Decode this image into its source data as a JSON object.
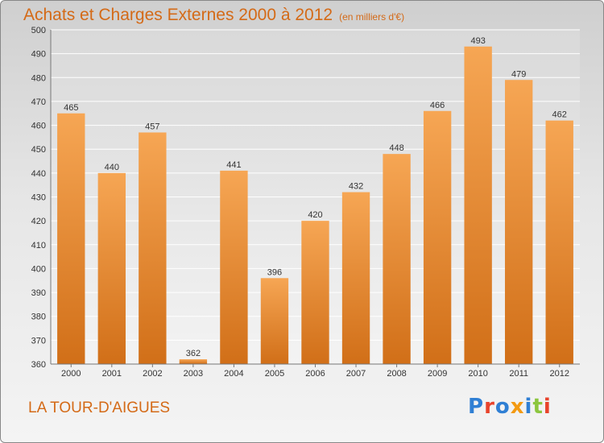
{
  "header": {
    "title": "Achats et Charges Externes 2000 à 2012",
    "unit": "(en milliers d'€)"
  },
  "footer": {
    "commune": "LA TOUR-D'AIGUES",
    "logo_text": "Proxiti",
    "logo_colors": [
      "#2f7fd4",
      "#e8432b",
      "#2f7fd4",
      "#f39a12",
      "#2f7fd4",
      "#8cc63f",
      "#e8432b"
    ]
  },
  "colors": {
    "bar_top": "#f6a654",
    "bar_bottom": "#d16f18",
    "text": "#d46a17"
  },
  "chart_data": {
    "type": "bar",
    "title": "Achats et Charges Externes 2000 à 2012",
    "subtitle": "(en milliers d'€)",
    "xlabel": "",
    "ylabel": "",
    "categories": [
      "2000",
      "2001",
      "2002",
      "2003",
      "2004",
      "2005",
      "2006",
      "2007",
      "2008",
      "2009",
      "2010",
      "2011",
      "2012"
    ],
    "values": [
      465,
      440,
      457,
      362,
      441,
      396,
      420,
      432,
      448,
      466,
      493,
      479,
      462
    ],
    "ylim": [
      360,
      500
    ],
    "yticks": [
      360,
      370,
      380,
      390,
      400,
      410,
      420,
      430,
      440,
      450,
      460,
      470,
      480,
      490,
      500
    ],
    "grid": true,
    "legend": "none"
  }
}
